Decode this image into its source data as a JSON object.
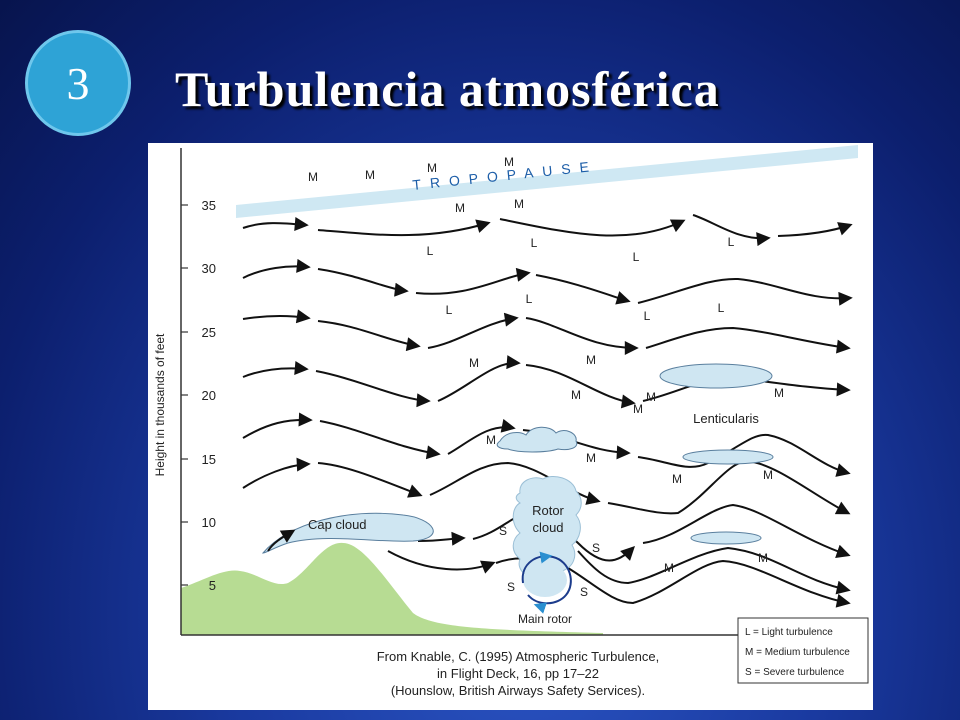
{
  "slide": {
    "number": "3",
    "title": "Turbulencia atmosférica"
  },
  "colors": {
    "background": "#0c1f6e",
    "badge": "#2ea3d6",
    "mountain": "#b7dc93",
    "cloud": "#cfe6f2",
    "tropopause": "#cfe8f3"
  },
  "diagram": {
    "y_axis_label": "Height in thousands of feet",
    "y_ticks": [
      "35",
      "30",
      "25",
      "20",
      "15",
      "10",
      "5"
    ],
    "tropopause_label": "TROPOPAUSE",
    "clouds": {
      "cap": "Cap cloud",
      "rotor_line1": "Rotor",
      "rotor_line2": "cloud",
      "main_rotor": "Main rotor",
      "lenticularis": "Lenticularis"
    },
    "turbulence_marks": [
      "M",
      "M",
      "M",
      "M",
      "M",
      "M",
      "L",
      "L",
      "L",
      "L",
      "L",
      "L",
      "L",
      "L",
      "M",
      "M",
      "M",
      "M",
      "M",
      "M",
      "M",
      "M",
      "M",
      "M",
      "M",
      "M",
      "S",
      "S",
      "S",
      "S"
    ],
    "legend": [
      "L = Light turbulence",
      "M = Medium turbulence",
      "S = Severe turbulence"
    ],
    "citation": [
      "From Knable, C. (1995) Atmospheric Turbulence,",
      "in Flight Deck, 16, pp 17–22",
      "(Hounslow, British Airways Safety Services)."
    ]
  }
}
